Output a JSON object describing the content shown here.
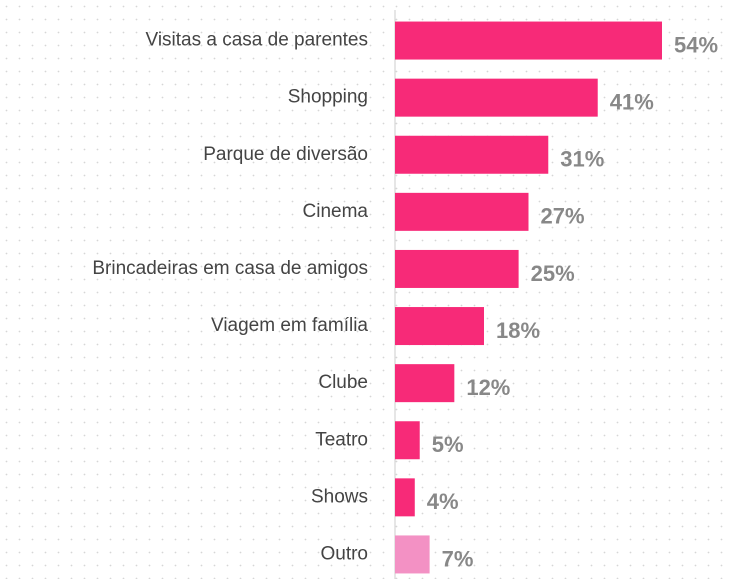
{
  "chart_data": {
    "type": "bar",
    "orientation": "horizontal",
    "categories": [
      "Visitas a casa de parentes",
      "Shopping",
      "Parque de diversão",
      "Cinema",
      "Brincadeiras em casa de amigos",
      "Viagem em família",
      "Clube",
      "Teatro",
      "Shows",
      "Outro"
    ],
    "values": [
      54,
      41,
      31,
      27,
      25,
      18,
      12,
      5,
      4,
      7
    ],
    "value_labels": [
      "54%",
      "41%",
      "31%",
      "27%",
      "25%",
      "18%",
      "12%",
      "5%",
      "4%",
      "7%"
    ],
    "colors": [
      "#f72a78",
      "#f72a78",
      "#f72a78",
      "#f72a78",
      "#f72a78",
      "#f72a78",
      "#f72a78",
      "#f72a78",
      "#f72a78",
      "#f391c4"
    ]
  }
}
